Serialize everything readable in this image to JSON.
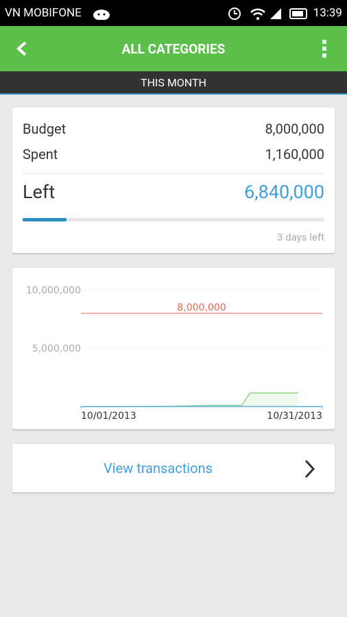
{
  "status_bar": {
    "carrier": "VN MOBIFONE",
    "time": "13:39"
  },
  "app_bar": {
    "title": "ALL CATEGORIES"
  },
  "period": "THIS MONTH",
  "summary": {
    "budget": {
      "label": "Budget",
      "value": "8,000,000"
    },
    "spent": {
      "label": "Spent",
      "value": "1,160,000"
    },
    "left": {
      "label": "Left",
      "value": "6,840,000"
    },
    "days_left": "3 days left"
  },
  "chart_data": {
    "type": "line",
    "x": [
      "10/01/2013",
      "10/12/2013",
      "10/17/2013",
      "10/21/2013",
      "10/22/2013",
      "10/28/2013"
    ],
    "series": [
      {
        "color": "#8fd68a",
        "values": [
          0,
          20000,
          100000,
          100000,
          1160000,
          1160000
        ]
      }
    ],
    "xlim": [
      "10/01/2013",
      "10/31/2013"
    ],
    "xticks": [
      "10/01/2013",
      "10/31/2013"
    ],
    "ylim": [
      0,
      10000000
    ],
    "yticks": [
      {
        "value": 5000000,
        "label": "5,000,000"
      },
      {
        "value": 10000000,
        "label": "10,000,000"
      }
    ],
    "grid": true,
    "annotations": [
      {
        "value": 8000000,
        "label": "8,000,000",
        "color": "#e0664a"
      }
    ]
  },
  "button": {
    "label": "View transactions"
  }
}
